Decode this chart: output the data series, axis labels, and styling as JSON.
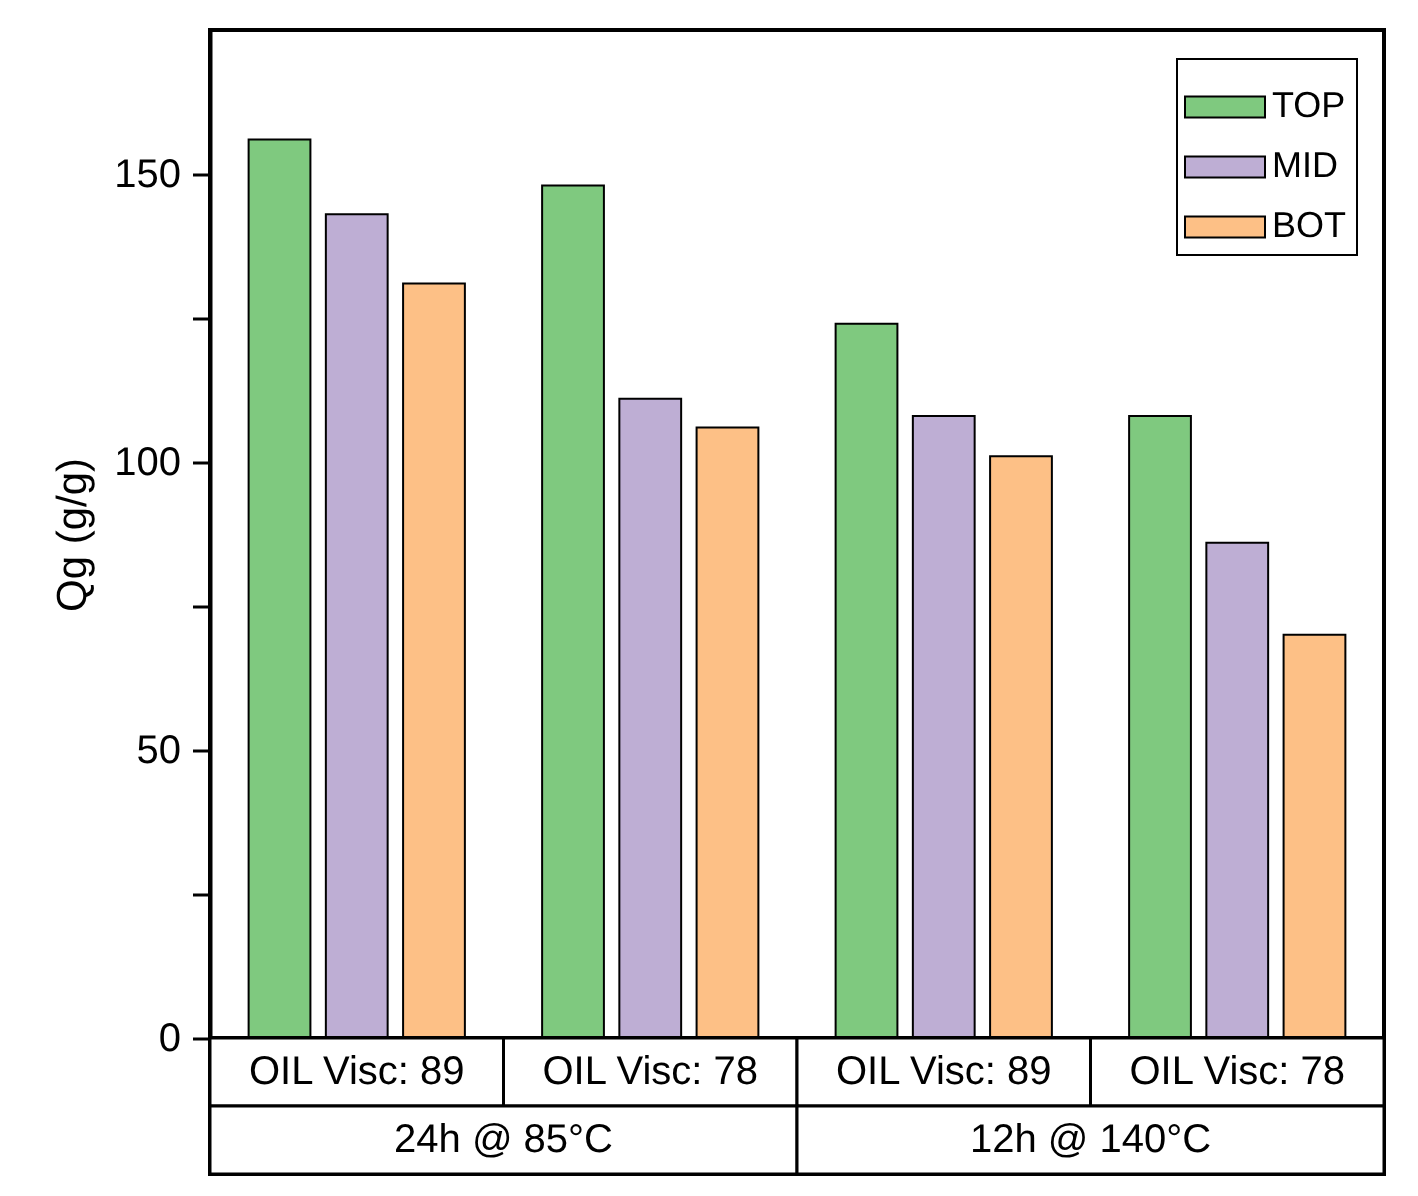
{
  "chart_data": {
    "type": "bar",
    "categories": [
      "OIL Visc: 89",
      "OIL Visc: 78",
      "OIL Visc: 89",
      "OIL Visc: 78"
    ],
    "series": [
      {
        "name": "TOP",
        "color": "#7fc97f",
        "values": [
          156,
          148,
          124,
          108
        ]
      },
      {
        "name": "MID",
        "color": "#beaed4",
        "values": [
          143,
          111,
          108,
          86
        ]
      },
      {
        "name": "BOT",
        "color": "#fdc086",
        "values": [
          131,
          106,
          101,
          70
        ]
      }
    ],
    "ylabel": "Qg (g/g)",
    "ylim": [
      0,
      175
    ],
    "yticks": [
      0,
      {
        "value": 25,
        "label": null
      },
      50,
      {
        "value": 75,
        "label": null
      },
      100,
      {
        "value": 125,
        "label": null
      },
      150
    ],
    "annotations": [
      "24h @ 85°C",
      "12h @ 140°C"
    ],
    "legend": "top right"
  }
}
